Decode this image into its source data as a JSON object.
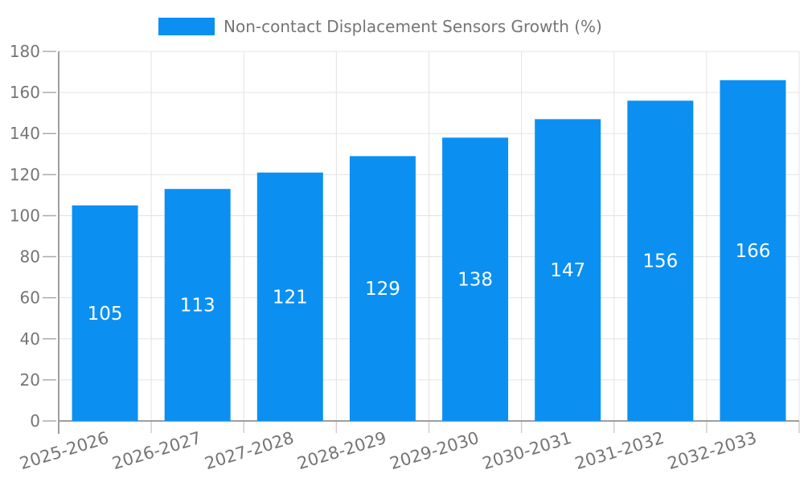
{
  "legend": {
    "label": "Non-contact Displacement Sensors Growth (%)"
  },
  "chart_data": {
    "type": "bar",
    "title": "",
    "series_name": "Non-contact Displacement Sensors Growth (%)",
    "categories": [
      "2025-2026",
      "2026-2027",
      "2027-2028",
      "2028-2029",
      "2029-2030",
      "2030-2031",
      "2031-2032",
      "2032-2033"
    ],
    "values": [
      105,
      113,
      121,
      129,
      138,
      147,
      156,
      166
    ],
    "bar_value_labels": [
      "105",
      "113",
      "121",
      "129",
      "138",
      "147",
      "156",
      "166"
    ],
    "ytick_labels": [
      "0",
      "20",
      "40",
      "60",
      "80",
      "100",
      "120",
      "140",
      "160",
      "180"
    ],
    "ylim": [
      0,
      180
    ],
    "ytick_step": 20,
    "grid": true,
    "legend_position": "top",
    "xlabel": "",
    "ylabel": "",
    "colors": {
      "bar": "#0B90F2",
      "bar_label": "#FFFFFF",
      "axis_line": "#9E9E9E",
      "axis_tick": "#ABABAB",
      "grid_line": "#E3E3E3",
      "minor_tick": "#CFCFCF",
      "tick_label": "#757575",
      "legend_text": "#757575",
      "background": "#FFFFFF"
    }
  }
}
